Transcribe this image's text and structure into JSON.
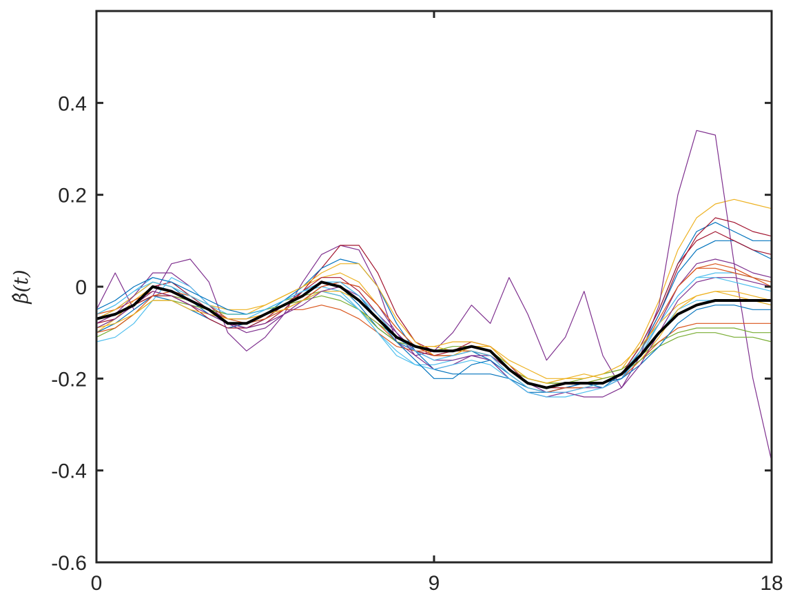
{
  "chart_data": {
    "type": "line",
    "title": "",
    "xlabel": "",
    "ylabel": "β̂(t)",
    "xlim": [
      0,
      18
    ],
    "ylim": [
      -0.6,
      0.6
    ],
    "xticks": [
      0,
      9,
      18
    ],
    "xtick_labels": [
      "0",
      "9",
      "18"
    ],
    "yticks": [
      -0.6,
      -0.4,
      -0.2,
      0,
      0.2,
      0.4
    ],
    "ytick_labels": [
      "-0.6",
      "-0.4",
      "-0.2",
      "0",
      "0.2",
      "0.4"
    ],
    "grid": false,
    "legend": "none",
    "x": [
      0,
      0.5,
      1,
      1.5,
      2,
      2.5,
      3,
      3.5,
      4,
      4.5,
      5,
      5.5,
      6,
      6.5,
      7,
      7.5,
      8,
      8.5,
      9,
      9.5,
      10,
      10.5,
      11,
      11.5,
      12,
      12.5,
      13,
      13.5,
      14,
      14.5,
      15,
      15.5,
      16,
      16.5,
      17,
      17.5,
      18
    ],
    "mean_series": {
      "color": "#000000",
      "values": [
        -0.07,
        -0.06,
        -0.04,
        0.0,
        -0.01,
        -0.03,
        -0.05,
        -0.08,
        -0.08,
        -0.06,
        -0.04,
        -0.02,
        0.01,
        0.0,
        -0.03,
        -0.07,
        -0.11,
        -0.13,
        -0.14,
        -0.14,
        -0.13,
        -0.14,
        -0.18,
        -0.21,
        -0.22,
        -0.21,
        -0.21,
        -0.21,
        -0.19,
        -0.15,
        -0.1,
        -0.06,
        -0.04,
        -0.03,
        -0.03,
        -0.03,
        -0.03
      ]
    },
    "series": [
      {
        "color": "#0072BD",
        "values": [
          -0.07,
          -0.05,
          -0.02,
          0.01,
          0.0,
          -0.03,
          -0.06,
          -0.08,
          -0.09,
          -0.07,
          -0.04,
          -0.01,
          0.01,
          0.0,
          -0.04,
          -0.09,
          -0.12,
          -0.14,
          -0.15,
          -0.15,
          -0.14,
          -0.16,
          -0.2,
          -0.23,
          -0.23,
          -0.22,
          -0.21,
          -0.22,
          -0.19,
          -0.13,
          -0.05,
          0.05,
          0.12,
          0.14,
          0.12,
          0.1,
          0.1
        ]
      },
      {
        "color": "#D95319",
        "values": [
          -0.08,
          -0.06,
          -0.04,
          -0.01,
          -0.02,
          -0.03,
          -0.05,
          -0.07,
          -0.07,
          -0.06,
          -0.04,
          -0.03,
          -0.01,
          -0.02,
          -0.05,
          -0.08,
          -0.12,
          -0.13,
          -0.14,
          -0.14,
          -0.14,
          -0.15,
          -0.18,
          -0.2,
          -0.21,
          -0.21,
          -0.21,
          -0.2,
          -0.19,
          -0.15,
          -0.08,
          0.0,
          0.04,
          0.05,
          0.04,
          0.02,
          0.0
        ]
      },
      {
        "color": "#EDB120",
        "values": [
          -0.1,
          -0.07,
          -0.03,
          0.0,
          -0.01,
          -0.03,
          -0.05,
          -0.06,
          -0.06,
          -0.04,
          -0.02,
          0.0,
          0.02,
          0.03,
          0.01,
          -0.04,
          -0.09,
          -0.13,
          -0.13,
          -0.14,
          -0.13,
          -0.13,
          -0.17,
          -0.2,
          -0.21,
          -0.2,
          -0.2,
          -0.19,
          -0.18,
          -0.12,
          -0.03,
          0.08,
          0.15,
          0.18,
          0.19,
          0.18,
          0.17
        ]
      },
      {
        "color": "#7E2F8E",
        "values": [
          -0.05,
          0.03,
          -0.05,
          -0.02,
          0.05,
          0.06,
          0.01,
          -0.1,
          -0.14,
          -0.11,
          -0.06,
          0.01,
          0.07,
          0.09,
          0.08,
          0.0,
          -0.12,
          -0.15,
          -0.14,
          -0.1,
          -0.04,
          -0.08,
          0.02,
          -0.06,
          -0.16,
          -0.11,
          -0.01,
          -0.15,
          -0.22,
          -0.15,
          -0.04,
          0.2,
          0.34,
          0.33,
          0.05,
          -0.2,
          -0.38
        ]
      },
      {
        "color": "#77AC30",
        "values": [
          -0.09,
          -0.07,
          -0.04,
          -0.02,
          -0.02,
          -0.03,
          -0.05,
          -0.06,
          -0.06,
          -0.05,
          -0.03,
          -0.02,
          -0.01,
          -0.02,
          -0.05,
          -0.08,
          -0.11,
          -0.13,
          -0.14,
          -0.14,
          -0.14,
          -0.15,
          -0.18,
          -0.2,
          -0.21,
          -0.21,
          -0.2,
          -0.19,
          -0.18,
          -0.15,
          -0.12,
          -0.1,
          -0.09,
          -0.09,
          -0.09,
          -0.1,
          -0.1
        ]
      },
      {
        "color": "#4DBEEE",
        "values": [
          -0.06,
          -0.04,
          -0.01,
          0.02,
          0.01,
          -0.02,
          -0.05,
          -0.07,
          -0.07,
          -0.05,
          -0.03,
          -0.01,
          0.0,
          -0.01,
          -0.05,
          -0.1,
          -0.14,
          -0.17,
          -0.17,
          -0.16,
          -0.15,
          -0.16,
          -0.19,
          -0.22,
          -0.23,
          -0.22,
          -0.22,
          -0.21,
          -0.19,
          -0.15,
          -0.1,
          -0.05,
          -0.03,
          -0.03,
          -0.03,
          -0.03,
          -0.04
        ]
      },
      {
        "color": "#A2142F",
        "values": [
          -0.08,
          -0.07,
          -0.04,
          0.0,
          0.01,
          -0.02,
          -0.05,
          -0.08,
          -0.09,
          -0.08,
          -0.05,
          -0.01,
          0.04,
          0.09,
          0.09,
          0.03,
          -0.06,
          -0.12,
          -0.14,
          -0.14,
          -0.13,
          -0.14,
          -0.18,
          -0.21,
          -0.22,
          -0.21,
          -0.21,
          -0.21,
          -0.2,
          -0.14,
          -0.06,
          0.04,
          0.11,
          0.15,
          0.14,
          0.12,
          0.11
        ]
      },
      {
        "color": "#0072BD",
        "values": [
          -0.1,
          -0.08,
          -0.05,
          -0.02,
          -0.03,
          -0.05,
          -0.07,
          -0.09,
          -0.08,
          -0.06,
          -0.03,
          0.0,
          0.04,
          0.06,
          0.05,
          0.0,
          -0.08,
          -0.14,
          -0.18,
          -0.19,
          -0.19,
          -0.19,
          -0.2,
          -0.22,
          -0.23,
          -0.22,
          -0.21,
          -0.22,
          -0.2,
          -0.14,
          -0.06,
          0.03,
          0.08,
          0.1,
          0.1,
          0.08,
          0.06
        ]
      },
      {
        "color": "#D95319",
        "values": [
          -0.06,
          -0.05,
          -0.03,
          -0.01,
          -0.02,
          -0.04,
          -0.05,
          -0.07,
          -0.07,
          -0.06,
          -0.05,
          -0.05,
          -0.04,
          -0.05,
          -0.07,
          -0.1,
          -0.13,
          -0.14,
          -0.14,
          -0.14,
          -0.14,
          -0.15,
          -0.18,
          -0.21,
          -0.22,
          -0.22,
          -0.22,
          -0.21,
          -0.2,
          -0.16,
          -0.12,
          -0.09,
          -0.08,
          -0.08,
          -0.08,
          -0.08,
          -0.08
        ]
      },
      {
        "color": "#EDB120",
        "values": [
          -0.07,
          -0.05,
          -0.02,
          0.01,
          0.0,
          -0.02,
          -0.04,
          -0.05,
          -0.05,
          -0.04,
          -0.02,
          0.0,
          0.03,
          0.05,
          0.05,
          0.0,
          -0.07,
          -0.12,
          -0.15,
          -0.15,
          -0.13,
          -0.13,
          -0.16,
          -0.18,
          -0.2,
          -0.2,
          -0.19,
          -0.2,
          -0.19,
          -0.16,
          -0.11,
          -0.05,
          -0.02,
          -0.01,
          -0.02,
          -0.03,
          -0.04
        ]
      },
      {
        "color": "#7E2F8E",
        "values": [
          -0.08,
          -0.06,
          -0.02,
          0.03,
          0.03,
          0.0,
          -0.04,
          -0.08,
          -0.1,
          -0.09,
          -0.06,
          -0.03,
          0.0,
          0.01,
          0.0,
          -0.04,
          -0.1,
          -0.15,
          -0.18,
          -0.17,
          -0.15,
          -0.16,
          -0.2,
          -0.23,
          -0.24,
          -0.23,
          -0.22,
          -0.22,
          -0.2,
          -0.15,
          -0.08,
          0.0,
          0.05,
          0.06,
          0.05,
          0.03,
          0.02
        ]
      },
      {
        "color": "#77AC30",
        "values": [
          -0.11,
          -0.09,
          -0.06,
          -0.03,
          -0.03,
          -0.04,
          -0.05,
          -0.06,
          -0.06,
          -0.05,
          -0.04,
          -0.03,
          -0.02,
          -0.03,
          -0.05,
          -0.09,
          -0.12,
          -0.13,
          -0.14,
          -0.13,
          -0.13,
          -0.14,
          -0.17,
          -0.2,
          -0.21,
          -0.21,
          -0.21,
          -0.2,
          -0.19,
          -0.16,
          -0.13,
          -0.11,
          -0.1,
          -0.1,
          -0.11,
          -0.11,
          -0.12
        ]
      },
      {
        "color": "#4DBEEE",
        "values": [
          -0.12,
          -0.11,
          -0.08,
          -0.03,
          0.02,
          0.0,
          -0.04,
          -0.07,
          -0.08,
          -0.07,
          -0.05,
          -0.03,
          -0.01,
          -0.02,
          -0.05,
          -0.1,
          -0.15,
          -0.17,
          -0.18,
          -0.17,
          -0.16,
          -0.17,
          -0.2,
          -0.23,
          -0.24,
          -0.24,
          -0.23,
          -0.22,
          -0.2,
          -0.15,
          -0.08,
          -0.02,
          0.02,
          0.03,
          0.03,
          0.02,
          0.01
        ]
      },
      {
        "color": "#A2142F",
        "values": [
          -0.07,
          -0.06,
          -0.04,
          -0.02,
          -0.02,
          -0.04,
          -0.07,
          -0.09,
          -0.09,
          -0.07,
          -0.04,
          -0.01,
          0.02,
          0.02,
          -0.01,
          -0.06,
          -0.11,
          -0.14,
          -0.15,
          -0.14,
          -0.12,
          -0.13,
          -0.17,
          -0.21,
          -0.22,
          -0.22,
          -0.21,
          -0.21,
          -0.19,
          -0.13,
          -0.05,
          0.05,
          0.1,
          0.12,
          0.1,
          0.08,
          0.07
        ]
      },
      {
        "color": "#0072BD",
        "values": [
          -0.05,
          -0.03,
          0.0,
          0.02,
          0.01,
          -0.01,
          -0.03,
          -0.05,
          -0.06,
          -0.05,
          -0.03,
          -0.01,
          0.01,
          0.01,
          -0.02,
          -0.07,
          -0.12,
          -0.16,
          -0.2,
          -0.2,
          -0.17,
          -0.16,
          -0.19,
          -0.22,
          -0.23,
          -0.22,
          -0.21,
          -0.21,
          -0.2,
          -0.17,
          -0.13,
          -0.08,
          -0.05,
          -0.04,
          -0.04,
          -0.05,
          -0.05
        ]
      },
      {
        "color": "#D95319",
        "values": [
          -0.1,
          -0.09,
          -0.06,
          -0.02,
          -0.01,
          -0.02,
          -0.04,
          -0.07,
          -0.08,
          -0.07,
          -0.05,
          -0.03,
          0.0,
          0.01,
          0.0,
          -0.04,
          -0.09,
          -0.13,
          -0.15,
          -0.15,
          -0.14,
          -0.15,
          -0.19,
          -0.22,
          -0.23,
          -0.22,
          -0.22,
          -0.21,
          -0.19,
          -0.14,
          -0.07,
          0.0,
          0.04,
          0.04,
          0.03,
          0.02,
          0.01
        ]
      },
      {
        "color": "#EDB120",
        "values": [
          -0.09,
          -0.08,
          -0.06,
          -0.03,
          -0.03,
          -0.05,
          -0.06,
          -0.07,
          -0.07,
          -0.06,
          -0.05,
          -0.03,
          -0.01,
          -0.01,
          -0.03,
          -0.07,
          -0.11,
          -0.13,
          -0.13,
          -0.12,
          -0.12,
          -0.13,
          -0.17,
          -0.2,
          -0.21,
          -0.2,
          -0.2,
          -0.19,
          -0.17,
          -0.13,
          -0.08,
          -0.04,
          -0.02,
          -0.01,
          -0.01,
          -0.02,
          -0.03
        ]
      },
      {
        "color": "#7E2F8E",
        "values": [
          -0.09,
          -0.07,
          -0.04,
          -0.01,
          -0.02,
          -0.04,
          -0.06,
          -0.08,
          -0.09,
          -0.08,
          -0.06,
          -0.04,
          -0.01,
          0.0,
          -0.02,
          -0.06,
          -0.1,
          -0.14,
          -0.16,
          -0.16,
          -0.15,
          -0.15,
          -0.18,
          -0.21,
          -0.23,
          -0.23,
          -0.24,
          -0.24,
          -0.22,
          -0.17,
          -0.1,
          -0.03,
          0.01,
          0.02,
          0.02,
          0.01,
          0.0
        ]
      },
      {
        "color": "#4DBEEE",
        "values": [
          -0.06,
          -0.04,
          -0.01,
          0.01,
          0.0,
          -0.02,
          -0.04,
          -0.06,
          -0.06,
          -0.05,
          -0.03,
          -0.01,
          0.01,
          0.01,
          -0.02,
          -0.06,
          -0.11,
          -0.14,
          -0.16,
          -0.15,
          -0.14,
          -0.15,
          -0.19,
          -0.22,
          -0.23,
          -0.23,
          -0.22,
          -0.21,
          -0.19,
          -0.14,
          -0.08,
          -0.02,
          0.02,
          0.02,
          0.01,
          0.0,
          -0.01
        ]
      }
    ]
  }
}
